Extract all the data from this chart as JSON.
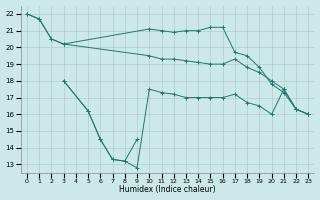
{
  "xlabel": "Humidex (Indice chaleur)",
  "bg_color": "#cce8e8",
  "grid_color": "#b0cccc",
  "line_color": "#1a7a6e",
  "xlim": [
    -0.5,
    23.5
  ],
  "ylim": [
    12.5,
    22.5
  ],
  "xticks": [
    0,
    1,
    2,
    3,
    4,
    5,
    6,
    7,
    8,
    9,
    10,
    11,
    12,
    13,
    14,
    15,
    16,
    17,
    18,
    19,
    20,
    21,
    22,
    23
  ],
  "yticks": [
    13,
    14,
    15,
    16,
    17,
    18,
    19,
    20,
    21,
    22
  ],
  "series1_x": [
    0,
    1,
    2,
    3,
    10,
    11,
    12,
    13,
    14,
    15,
    16,
    17,
    18,
    19,
    20,
    21,
    22,
    23
  ],
  "series1_y": [
    22,
    21.7,
    20.5,
    20.2,
    19.5,
    19.3,
    19.3,
    19.2,
    19.1,
    19.0,
    19.0,
    19.3,
    18.8,
    18.5,
    18.0,
    17.5,
    16.3,
    16.0
  ],
  "series2_x": [
    0,
    1,
    2,
    3,
    10,
    11,
    12,
    13,
    14,
    15,
    16,
    17,
    18,
    19,
    20,
    21,
    22,
    23
  ],
  "series2_y": [
    22,
    21.7,
    20.5,
    20.2,
    21.1,
    21.0,
    20.9,
    21.0,
    21.0,
    21.2,
    21.2,
    19.7,
    19.5,
    18.8,
    17.8,
    17.3,
    16.3,
    16.0
  ],
  "series3_x": [
    3,
    5,
    6,
    7,
    8,
    9,
    10,
    11,
    12,
    13,
    14,
    15,
    16,
    17,
    18,
    19,
    20,
    21,
    22,
    23
  ],
  "series3_y": [
    18.0,
    16.2,
    14.5,
    13.3,
    13.2,
    12.8,
    17.5,
    17.3,
    17.2,
    17.0,
    17.0,
    17.0,
    17.0,
    17.2,
    16.7,
    16.5,
    16.0,
    17.5,
    16.3,
    16.0
  ],
  "series4_x": [
    3,
    5,
    6,
    7,
    8,
    9
  ],
  "series4_y": [
    18.0,
    16.2,
    14.5,
    13.3,
    13.2,
    14.5
  ]
}
